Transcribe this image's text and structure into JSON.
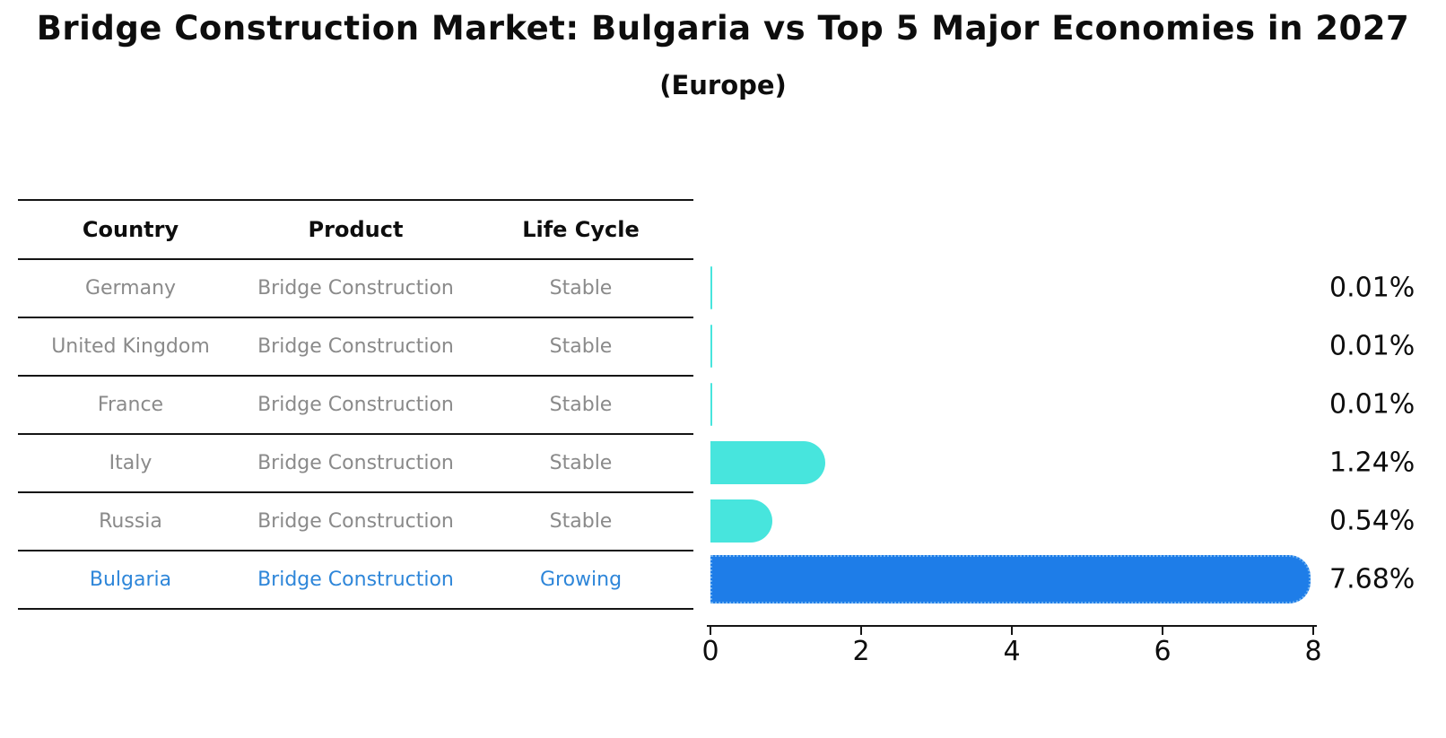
{
  "title": "Bridge Construction Market: Bulgaria vs Top 5 Major Economies in 2027",
  "subtitle": "(Europe)",
  "table": {
    "columns": [
      "Country",
      "Product",
      "Life Cycle"
    ],
    "rows": [
      {
        "country": "Germany",
        "product": "Bridge Construction",
        "life_cycle": "Stable",
        "highlight": false
      },
      {
        "country": "United Kingdom",
        "product": "Bridge Construction",
        "life_cycle": "Stable",
        "highlight": false
      },
      {
        "country": "France",
        "product": "Bridge Construction",
        "life_cycle": "Stable",
        "highlight": false
      },
      {
        "country": "Italy",
        "product": "Bridge Construction",
        "life_cycle": "Stable",
        "highlight": false
      },
      {
        "country": "Russia",
        "product": "Bridge Construction",
        "life_cycle": "Stable",
        "highlight": false
      },
      {
        "country": "Bulgaria",
        "product": "Bridge Construction",
        "life_cycle": "Growing",
        "highlight": true
      }
    ]
  },
  "chart_data": {
    "type": "bar",
    "orientation": "horizontal",
    "title": "Bridge Construction Market: Bulgaria vs Top 5 Major Economies in 2027",
    "subtitle": "(Europe)",
    "categories": [
      "Germany",
      "United Kingdom",
      "France",
      "Italy",
      "Russia",
      "Bulgaria"
    ],
    "values": [
      0.01,
      0.01,
      0.01,
      1.24,
      0.54,
      7.68
    ],
    "value_labels": [
      "0.01%",
      "0.01%",
      "0.01%",
      "1.24%",
      "0.54%",
      "7.68%"
    ],
    "xlim": [
      0,
      8
    ],
    "x_ticks": [
      0,
      2,
      4,
      6,
      8
    ],
    "grid": false,
    "legend": false,
    "highlight_index": 5,
    "colors": {
      "default_bar": "#47e5dd",
      "highlight_bar": "#1e7de8",
      "highlight_border": "#6fb2f2",
      "row_text": "#8a8a8a",
      "highlight_text": "#2e86d9",
      "axis": "#141414"
    }
  }
}
